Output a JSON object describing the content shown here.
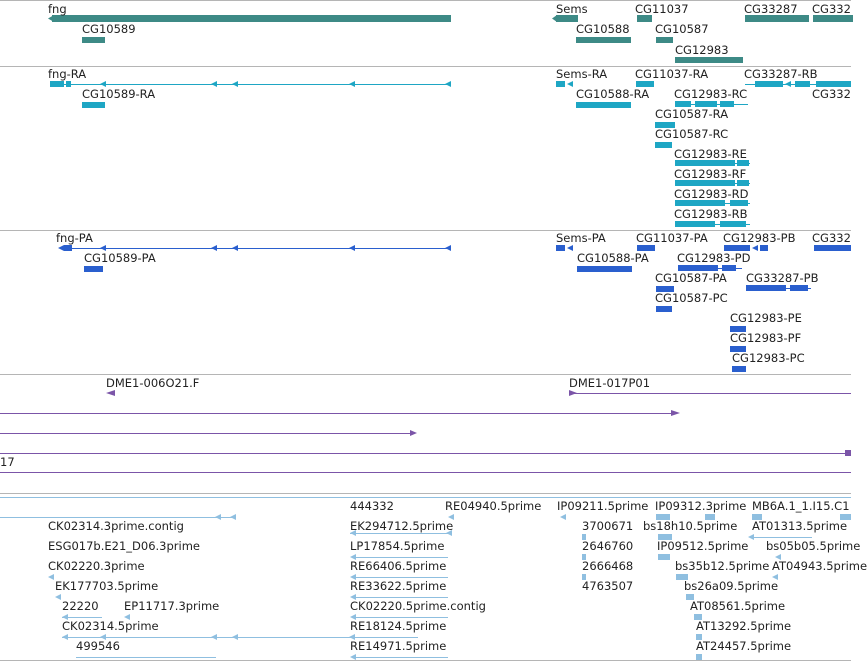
{
  "tracks": [
    {
      "id": "gene",
      "colors": {
        "block": "#3d8a86"
      },
      "features": [
        {
          "label": "fng"
        },
        {
          "label": "CG10589"
        },
        {
          "label": "Sems"
        },
        {
          "label": "CG11037"
        },
        {
          "label": "CG33287"
        },
        {
          "label": "CG332"
        },
        {
          "label": "CG10588"
        },
        {
          "label": "CG10587"
        },
        {
          "label": "CG12983"
        }
      ]
    },
    {
      "id": "transcript-ra",
      "colors": {
        "block": "#1ea6c4",
        "line": "#1ea6c4"
      },
      "features": [
        {
          "label": "fng-RA"
        },
        {
          "label": "CG10589-RA"
        },
        {
          "label": "Sems-RA"
        },
        {
          "label": "CG11037-RA"
        },
        {
          "label": "CG33287-RB"
        },
        {
          "label": "CG10588-RA"
        },
        {
          "label": "CG12983-RC"
        },
        {
          "label": "CG332"
        },
        {
          "label": "CG10587-RA"
        },
        {
          "label": "CG10587-RC"
        },
        {
          "label": "CG12983-RE"
        },
        {
          "label": "CG12983-RF"
        },
        {
          "label": "CG12983-RD"
        },
        {
          "label": "CG12983-RB"
        }
      ]
    },
    {
      "id": "protein-pa",
      "colors": {
        "block": "#2a5fce",
        "line": "#2a5fce"
      },
      "features": [
        {
          "label": "fng-PA"
        },
        {
          "label": "CG10589-PA"
        },
        {
          "label": "Sems-PA"
        },
        {
          "label": "CG11037-PA"
        },
        {
          "label": "CG12983-PB"
        },
        {
          "label": "CG332"
        },
        {
          "label": "CG10588-PA"
        },
        {
          "label": "CG12983-PD"
        },
        {
          "label": "CG10587-PA"
        },
        {
          "label": "CG33287-PB"
        },
        {
          "label": "CG10587-PC"
        },
        {
          "label": "CG12983-PE"
        },
        {
          "label": "CG12983-PF"
        },
        {
          "label": "CG12983-PC"
        }
      ]
    },
    {
      "id": "clones",
      "colors": {
        "block": "#7b55a8",
        "line": "#7b55a8"
      },
      "features": [
        {
          "label": "DME1-006O21.F"
        },
        {
          "label": "DME1-017P01"
        },
        {
          "label": "17"
        }
      ]
    },
    {
      "id": "est",
      "colors": {
        "block": "#8fbfe0",
        "line": "#8fbfe0"
      },
      "features": [
        {
          "label": "444332"
        },
        {
          "label": "RE04940.5prime"
        },
        {
          "label": "IP09211.5prime"
        },
        {
          "label": "IP09312.3prime"
        },
        {
          "label": "MB6A.1_1.I15.C1"
        },
        {
          "label": "CK02314.3prime.contig"
        },
        {
          "label": "EK294712.5prime"
        },
        {
          "label": "3700671"
        },
        {
          "label": "bs18h10.5prime"
        },
        {
          "label": "AT01313.5prime"
        },
        {
          "label": "ESG017b.E21_D06.3prime"
        },
        {
          "label": "LP17854.5prime"
        },
        {
          "label": "2646760"
        },
        {
          "label": "IP09512.5prime"
        },
        {
          "label": "bs05b05.5prime"
        },
        {
          "label": "CK02220.3prime"
        },
        {
          "label": "RE66406.5prime"
        },
        {
          "label": "2666468"
        },
        {
          "label": "bs35b12.5prime"
        },
        {
          "label": "AT04943.5prime"
        },
        {
          "label": "EK177703.5prime"
        },
        {
          "label": "RE33622.5prime"
        },
        {
          "label": "4763507"
        },
        {
          "label": "bs26a09.5prime"
        },
        {
          "label": "22220"
        },
        {
          "label": "EP11717.3prime"
        },
        {
          "label": "CK02220.5prime.contig"
        },
        {
          "label": "AT08561.5prime"
        },
        {
          "label": "CK02314.5prime"
        },
        {
          "label": "RE18124.5prime"
        },
        {
          "label": "AT13292.5prime"
        },
        {
          "label": "499546"
        },
        {
          "label": "RE14971.5prime"
        },
        {
          "label": "AT24457.5prime"
        }
      ]
    }
  ]
}
